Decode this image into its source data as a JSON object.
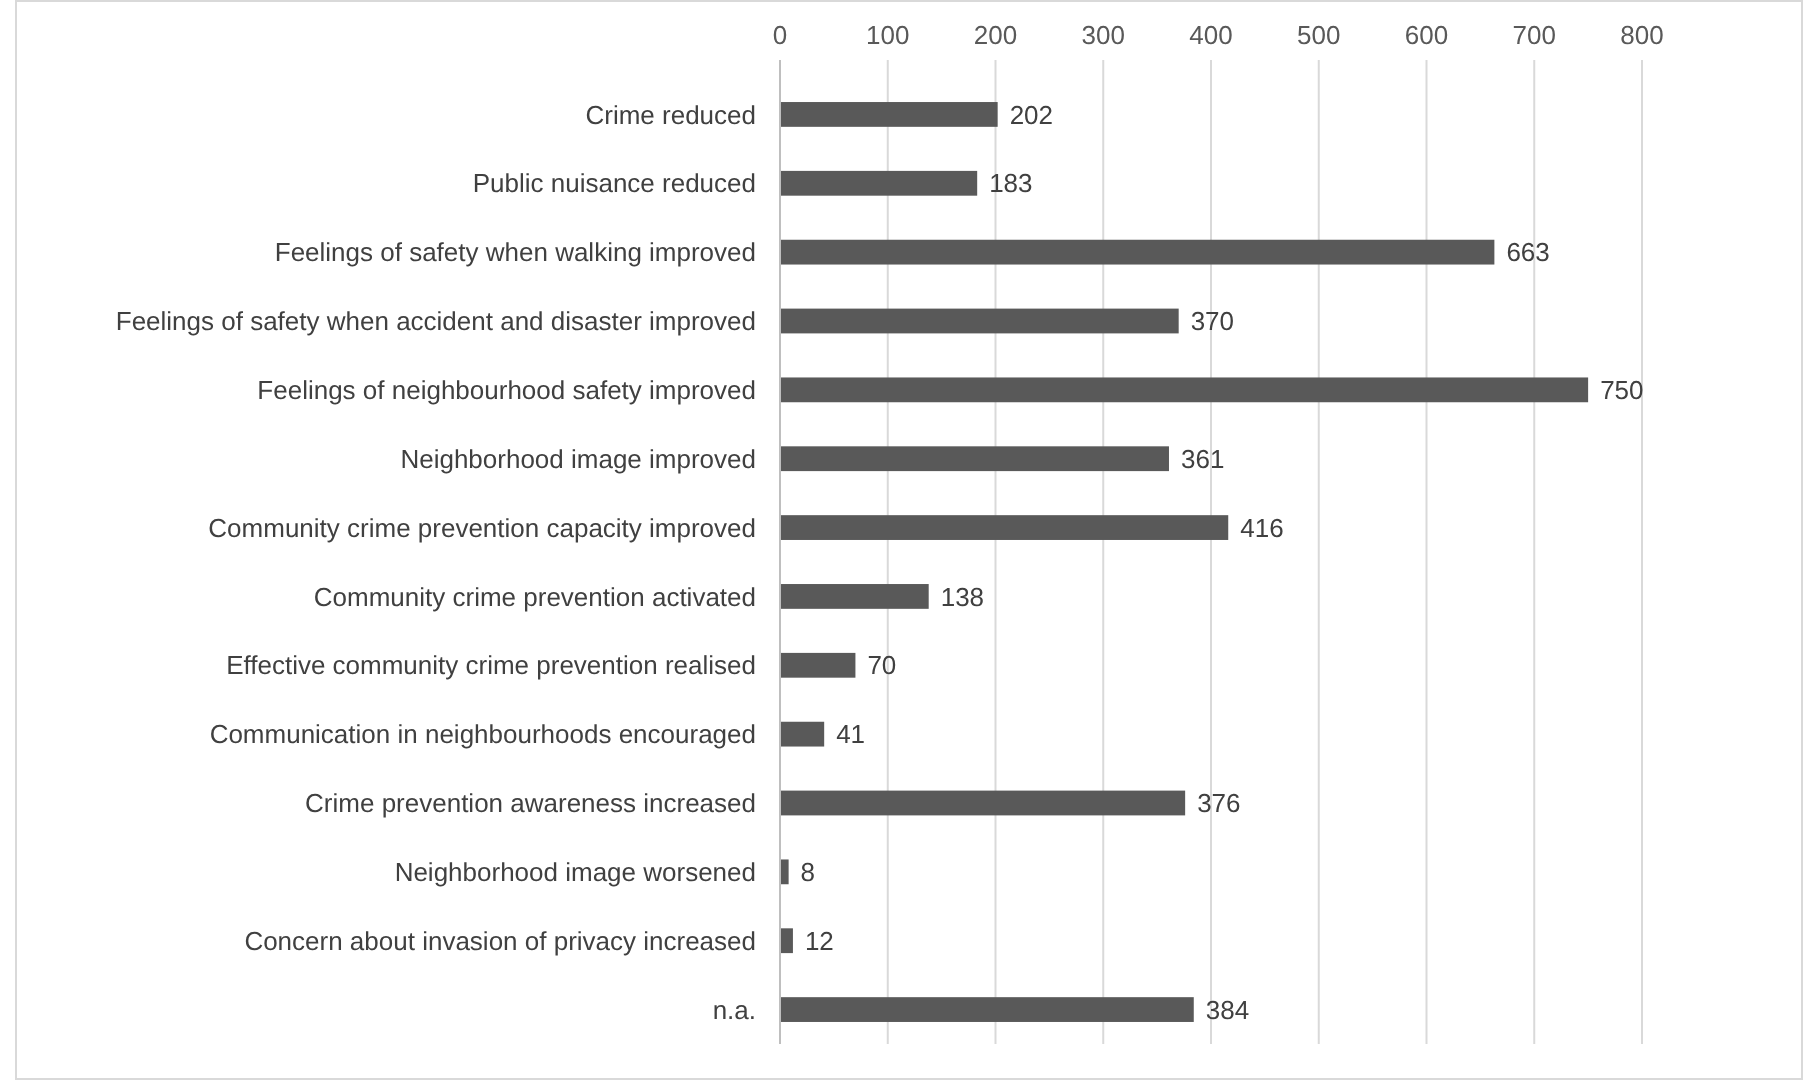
{
  "chart_data": {
    "type": "bar",
    "orientation": "horizontal",
    "categories": [
      "Crime reduced",
      "Public nuisance reduced",
      "Feelings of safety when walking improved",
      "Feelings of safety when accident and disaster improved",
      "Feelings of neighbourhood safety improved",
      "Neighborhood image improved",
      "Community crime prevention capacity improved",
      "Community crime prevention activated",
      "Effective community crime prevention realised",
      "Communication in neighbourhoods encouraged",
      "Crime prevention awareness increased",
      "Neighborhood image worsened",
      "Concern about invasion of privacy increased",
      "n.a."
    ],
    "values": [
      202,
      183,
      663,
      370,
      750,
      361,
      416,
      138,
      70,
      41,
      376,
      8,
      12,
      384
    ],
    "color": "#595959",
    "xlim": [
      0,
      800
    ],
    "xticks": [
      0,
      100,
      200,
      300,
      400,
      500,
      600,
      700,
      800
    ],
    "grid": "x",
    "data_labels": true
  }
}
